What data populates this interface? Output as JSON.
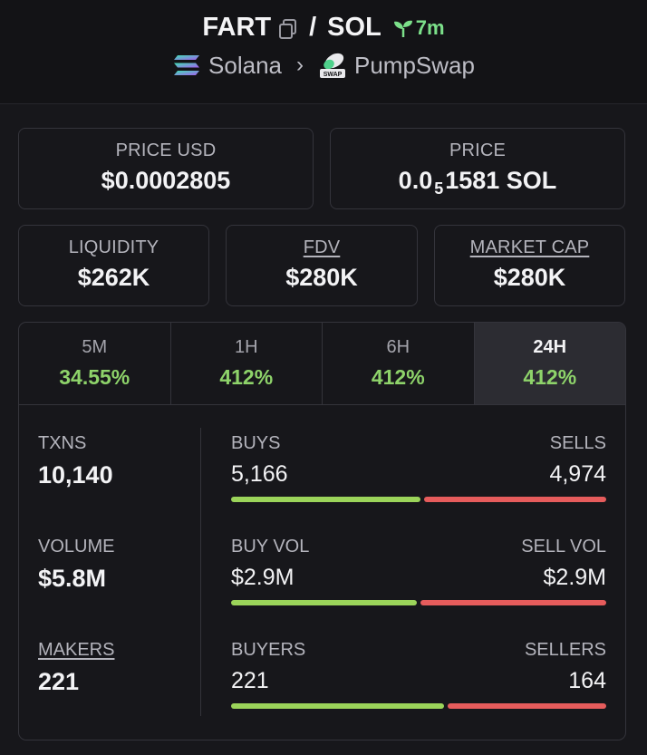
{
  "header": {
    "base_token": "FART",
    "separator": "/",
    "quote_token": "SOL",
    "age": "7m",
    "chain": "Solana",
    "dex": "PumpSwap",
    "dex_badge": "SWAP"
  },
  "price_cards": [
    {
      "label": "PRICE USD",
      "value": "$0.0002805"
    },
    {
      "label": "PRICE",
      "value_prefix": "0.0",
      "value_sub": "5",
      "value_suffix": "1581 SOL"
    }
  ],
  "metric_cards": [
    {
      "label": "LIQUIDITY",
      "value": "$262K"
    },
    {
      "label": "FDV",
      "value": "$280K"
    },
    {
      "label": "MARKET CAP",
      "value": "$280K"
    }
  ],
  "tabs": [
    {
      "label": "5M",
      "value": "34.55%"
    },
    {
      "label": "1H",
      "value": "412%"
    },
    {
      "label": "6H",
      "value": "412%"
    },
    {
      "label": "24H",
      "value": "412%",
      "active": true
    }
  ],
  "stats": {
    "txns": {
      "label": "TXNS",
      "value": "10,140"
    },
    "volume": {
      "label": "VOLUME",
      "value": "$5.8M"
    },
    "makers": {
      "label": "MAKERS",
      "value": "221"
    },
    "buys": {
      "label_left": "BUYS",
      "label_right": "SELLS",
      "left": "5,166",
      "right": "4,974",
      "buy_fraction": 0.5095
    },
    "vol": {
      "label_left": "BUY VOL",
      "label_right": "SELL VOL",
      "left": "$2.9M",
      "right": "$2.9M",
      "buy_fraction": 0.5
    },
    "people": {
      "label_left": "BUYERS",
      "label_right": "SELLERS",
      "left": "221",
      "right": "164",
      "buy_fraction": 0.574
    }
  },
  "colors": {
    "positive": "#8ed36a",
    "buy_bar": "#9bd45a",
    "sell_bar": "#e65c5c",
    "age": "#7ce08a"
  }
}
